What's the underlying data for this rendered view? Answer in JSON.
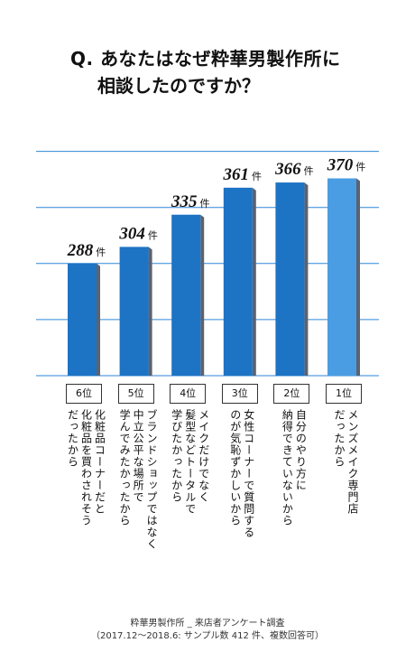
{
  "title": {
    "line1": "Q. あなたはなぜ粋華男製作所に",
    "line2": "相談したのですか？"
  },
  "unit": "件",
  "colors": {
    "bar": "#1d73c4",
    "bar_top": "#1a73c4",
    "highlight": "#4a9de2",
    "shadow": "#5b6270",
    "grid": "#2e86d9"
  },
  "chart_data": {
    "type": "bar",
    "title": "Q. あなたはなぜ粋華男製作所に相談したのですか？",
    "xlabel": "",
    "ylabel": "",
    "ylim": [
      180,
      410
    ],
    "grid": true,
    "categories": [
      "6位",
      "5位",
      "4位",
      "3位",
      "2位",
      "1位"
    ],
    "values": [
      288,
      304,
      335,
      361,
      366,
      370
    ],
    "unit": "件",
    "highlight_index": 5,
    "reasons": [
      "化粧品コーナーだと\n化粧品を買わされそう\nだったから",
      "ブランドショップではなく\n中立公平な場所で\n学んでみたかったから",
      "メイクだけでなく\n髪型などトータルで\n学びたかったから",
      "女性コーナーで質問する\nのが気恥ずかしいから",
      "自分のやり方に\n納得できていないから",
      "メンズメイク専門店\nだったから"
    ]
  },
  "footer": {
    "line1": "粋華男製作所 _ 来店者アンケート調査",
    "line2": "（2017.12〜2018.6: サンプル数 412 件、複数回答可）"
  }
}
